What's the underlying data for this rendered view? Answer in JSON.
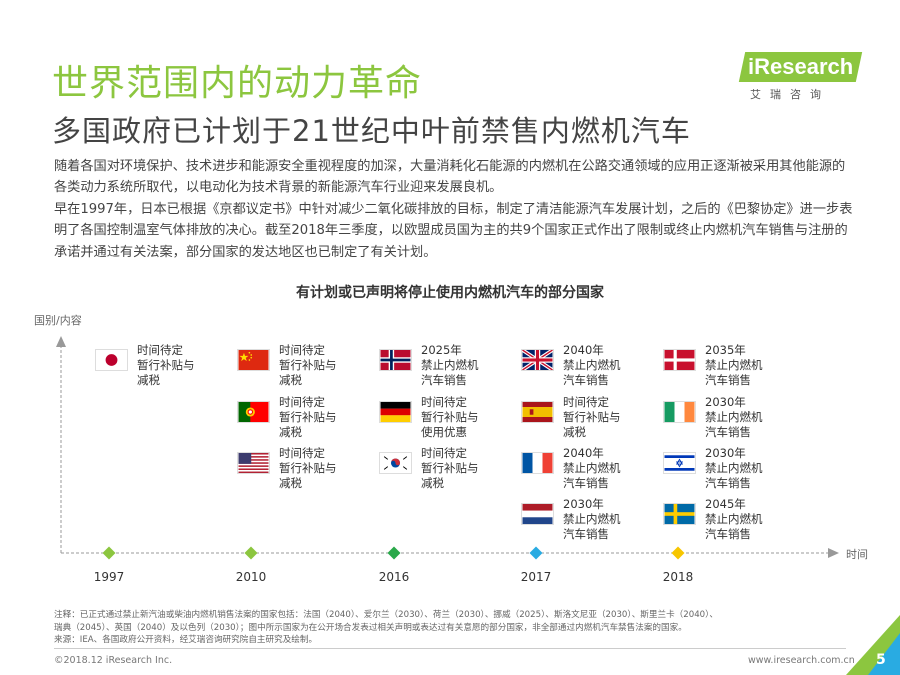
{
  "header": {
    "title": "世界范围内的动力革命",
    "subtitle": "多国政府已计划于21世纪中叶前禁售内燃机汽车"
  },
  "logo": {
    "name": "iResearch",
    "sub": "艾瑞咨询"
  },
  "body": {
    "para1": "随着各国对环境保护、技术进步和能源安全重视程度的加深，大量消耗化石能源的内燃机在公路交通领域的应用正逐渐被采用其他能源的各类动力系统所取代，以电动化为技术背景的新能源汽车行业迎来发展良机。",
    "para2": "早在1997年，日本已根据《京都议定书》中针对减少二氧化碳排放的目标，制定了清洁能源汽车发展计划，之后的《巴黎协定》进一步表明了各国控制温室气体排放的决心。截至2018年三季度，以欧盟成员国为主的共9个国家正式作出了限制或终止内燃机汽车销售与注册的承诺并通过有关法案，部分国家的发达地区也已制定了有关计划。"
  },
  "chart": {
    "title": "有计划或已声明将停止使用内燃机汽车的部分国家",
    "y_label": "国别/内容",
    "x_label": "时间",
    "timeline": [
      {
        "year": "1997",
        "color": "#8cc63f",
        "entries": [
          {
            "flag": "japan-flag",
            "lines": [
              "时间待定",
              "暂行补贴与",
              "减税"
            ]
          }
        ]
      },
      {
        "year": "2010",
        "color": "#8cc63f",
        "entries": [
          {
            "flag": "china-flag",
            "lines": [
              "时间待定",
              "暂行补贴与",
              "减税"
            ]
          },
          {
            "flag": "portugal-flag",
            "lines": [
              "时间待定",
              "暂行补贴与",
              "减税"
            ]
          },
          {
            "flag": "usa-flag",
            "lines": [
              "时间待定",
              "暂行补贴与",
              "减税"
            ]
          }
        ]
      },
      {
        "year": "2016",
        "color": "#2aa84a",
        "entries": [
          {
            "flag": "norway-flag",
            "lines": [
              "2025年",
              "禁止内燃机",
              "汽车销售"
            ]
          },
          {
            "flag": "germany-flag",
            "lines": [
              "时间待定",
              "暂行补贴与",
              "使用优惠"
            ]
          },
          {
            "flag": "south-korea-flag",
            "lines": [
              "时间待定",
              "暂行补贴与",
              "减税"
            ]
          }
        ]
      },
      {
        "year": "2017",
        "color": "#29abe2",
        "entries": [
          {
            "flag": "uk-flag",
            "lines": [
              "2040年",
              "禁止内燃机",
              "汽车销售"
            ]
          },
          {
            "flag": "spain-flag",
            "lines": [
              "时间待定",
              "暂行补贴与",
              "减税"
            ]
          },
          {
            "flag": "france-flag",
            "lines": [
              "2040年",
              "禁止内燃机",
              "汽车销售"
            ]
          },
          {
            "flag": "netherlands-flag",
            "lines": [
              "2030年",
              "禁止内燃机",
              "汽车销售"
            ]
          }
        ]
      },
      {
        "year": "2018",
        "color": "#f7c600",
        "entries": [
          {
            "flag": "denmark-flag",
            "lines": [
              "2035年",
              "禁止内燃机",
              "汽车销售"
            ]
          },
          {
            "flag": "ireland-flag",
            "lines": [
              "2030年",
              "禁止内燃机",
              "汽车销售"
            ]
          },
          {
            "flag": "israel-flag",
            "lines": [
              "2030年",
              "禁止内燃机",
              "汽车销售"
            ]
          },
          {
            "flag": "sweden-flag",
            "lines": [
              "2045年",
              "禁止内燃机",
              "汽车销售"
            ]
          }
        ]
      }
    ]
  },
  "footer": {
    "note1": "注释：已正式通过禁止新汽油或柴油内燃机销售法案的国家包括：法国（2040）、爱尔兰（2030）、荷兰（2030）、挪威（2025）、斯洛文尼亚（2030）、斯里兰卡（2040）、",
    "note2": "瑞典（2045）、英国（2040）及以色列（2030）；图中所示国家为在公开场合发表过相关声明或表达过有关意愿的部分国家，非全部通过内燃机汽车禁售法案的国家。",
    "source": "来源：IEA、各国政府公开资料，经艾瑞咨询研究院自主研究及绘制。",
    "copyright": "©2018.12 iResearch Inc.",
    "website": "www.iresearch.com.cn",
    "page": "5"
  },
  "colors": {
    "brand": "#8cc63f",
    "marker_2016": "#2aa84a",
    "marker_2017": "#29abe2",
    "marker_2018": "#f7c600"
  }
}
